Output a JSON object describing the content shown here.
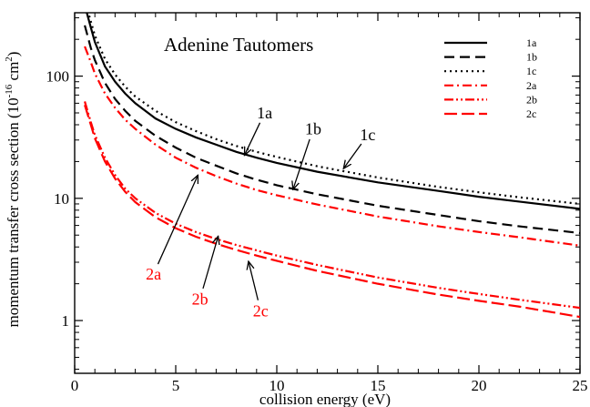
{
  "chart_data": {
    "type": "line",
    "title": "Adenine Tautomers",
    "xlabel": "collision energy (eV)",
    "ylabel_main": "momentum transfer cross section (10",
    "ylabel_exp1": "-16",
    "ylabel_mid": " cm",
    "ylabel_exp2": "2",
    "ylabel_end": ")",
    "xlim": [
      0,
      25
    ],
    "ylim": [
      0.37,
      330
    ],
    "yscale": "log",
    "x_ticks": [
      0,
      5,
      10,
      15,
      20,
      25
    ],
    "x_tick_labels": [
      "0",
      "5",
      "10",
      "15",
      "20",
      "25"
    ],
    "y_ticks": [
      1,
      10,
      100
    ],
    "y_tick_labels": [
      "1",
      "10",
      "100"
    ],
    "grid": false,
    "legend_position": "top-right",
    "series": [
      {
        "name": "1a",
        "color": "#000000",
        "style": "solid",
        "x": [
          0.5,
          0.8,
          1,
          1.5,
          2,
          2.5,
          3,
          4,
          5,
          6,
          7,
          8,
          9,
          10,
          12,
          15,
          18,
          20,
          22,
          25
        ],
        "y": [
          380,
          250,
          190,
          120,
          90,
          72,
          60,
          45,
          37,
          31.5,
          27.5,
          24,
          21.5,
          19.5,
          16.5,
          13.5,
          11.5,
          10.3,
          9.4,
          8.2
        ]
      },
      {
        "name": "1b",
        "color": "#000000",
        "style": "dashed",
        "x": [
          0.5,
          0.8,
          1,
          1.5,
          2,
          2.5,
          3,
          4,
          5,
          6,
          7,
          8,
          9,
          10,
          12,
          15,
          18,
          20,
          22,
          25
        ],
        "y": [
          260,
          170,
          135,
          88,
          65,
          52,
          43,
          32.5,
          26,
          21.5,
          18.5,
          16,
          14.2,
          12.8,
          10.8,
          8.7,
          7.3,
          6.5,
          5.9,
          5.2
        ]
      },
      {
        "name": "1c",
        "color": "#000000",
        "style": "dotted",
        "x": [
          0.5,
          0.8,
          1,
          1.5,
          2,
          2.5,
          3,
          4,
          5,
          6,
          7,
          8,
          9,
          10,
          12,
          15,
          18,
          20,
          22,
          25
        ],
        "y": [
          420,
          280,
          215,
          138,
          103,
          82,
          68,
          52,
          42,
          35.5,
          30.5,
          26.8,
          24,
          21.8,
          18.3,
          14.8,
          12.4,
          11.2,
          10.2,
          9.0
        ]
      },
      {
        "name": "2a",
        "color": "#ff0000",
        "style": "dashdot",
        "x": [
          0.5,
          0.8,
          1,
          1.5,
          2,
          2.5,
          3,
          4,
          5,
          6,
          7,
          8,
          9,
          10,
          12,
          15,
          18,
          20,
          22,
          25
        ],
        "y": [
          175,
          130,
          105,
          72,
          55,
          44,
          37,
          27.5,
          21.5,
          17.8,
          15.2,
          13.2,
          11.7,
          10.6,
          8.9,
          7.1,
          5.9,
          5.3,
          4.8,
          4.1
        ]
      },
      {
        "name": "2b",
        "color": "#ff0000",
        "style": "dashdotdot",
        "x": [
          0.5,
          0.8,
          1,
          1.5,
          2,
          2.5,
          3,
          4,
          5,
          6,
          7,
          8,
          9,
          10,
          12,
          15,
          18,
          20,
          22,
          25
        ],
        "y": [
          62,
          42,
          33,
          21.5,
          15.5,
          12,
          10,
          7.6,
          6.2,
          5.3,
          4.65,
          4.15,
          3.75,
          3.4,
          2.85,
          2.25,
          1.85,
          1.65,
          1.48,
          1.27
        ]
      },
      {
        "name": "2c",
        "color": "#ff0000",
        "style": "longdash",
        "x": [
          0.5,
          0.8,
          1,
          1.5,
          2,
          2.5,
          3,
          4,
          5,
          6,
          7,
          8,
          9,
          10,
          12,
          15,
          18,
          20,
          22,
          25
        ],
        "y": [
          58,
          40,
          31,
          20,
          14.5,
          11.3,
          9.3,
          7.0,
          5.7,
          4.85,
          4.25,
          3.78,
          3.4,
          3.08,
          2.55,
          2.0,
          1.63,
          1.45,
          1.3,
          1.07
        ]
      }
    ],
    "annotations": [
      {
        "text": "1a",
        "color": "#000000",
        "text_x": 9.4,
        "text_y": 50,
        "head_x": 8.4,
        "head_y": 22.5
      },
      {
        "text": "1b",
        "color": "#000000",
        "text_x": 11.8,
        "text_y": 37,
        "head_x": 10.8,
        "head_y": 11.8
      },
      {
        "text": "1c",
        "color": "#000000",
        "text_x": 14.5,
        "text_y": 33,
        "head_x": 13.3,
        "head_y": 17.5
      },
      {
        "text": "2a",
        "color": "#ff0000",
        "text_x": 3.9,
        "text_y": 2.4,
        "head_x": 6.1,
        "head_y": 15.5
      },
      {
        "text": "2b",
        "color": "#ff0000",
        "text_x": 6.2,
        "text_y": 1.5,
        "head_x": 7.1,
        "head_y": 4.9
      },
      {
        "text": "2c",
        "color": "#ff0000",
        "text_x": 9.2,
        "text_y": 1.2,
        "head_x": 8.6,
        "head_y": 3.05
      }
    ]
  }
}
